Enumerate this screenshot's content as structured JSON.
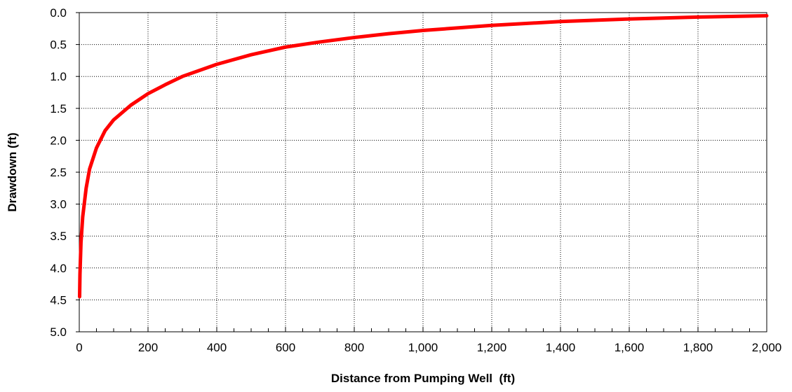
{
  "chart_data": {
    "type": "line",
    "title": "",
    "xlabel": "Distance from Pumping Well  (ft)",
    "ylabel": "Drawdown (ft)",
    "xlim": [
      0,
      2000
    ],
    "ylim": [
      0.0,
      5.0
    ],
    "y_inverted": true,
    "grid": true,
    "legend": "none",
    "x_ticks": [
      0,
      200,
      400,
      600,
      800,
      1000,
      1200,
      1400,
      1600,
      1800,
      2000
    ],
    "x_tick_labels": [
      "0",
      "200",
      "400",
      "600",
      "800",
      "1,000",
      "1,200",
      "1,400",
      "1,600",
      "1,800",
      "2,000"
    ],
    "y_ticks": [
      0.0,
      0.5,
      1.0,
      1.5,
      2.0,
      2.5,
      3.0,
      3.5,
      4.0,
      4.5,
      5.0
    ],
    "y_tick_labels": [
      "0.0",
      "0.5",
      "1.0",
      "1.5",
      "2.0",
      "2.5",
      "3.0",
      "3.5",
      "4.0",
      "4.5",
      "5.0"
    ],
    "series": [
      {
        "color": "#ff0000",
        "x": [
          1,
          2,
          5,
          10,
          20,
          30,
          50,
          75,
          100,
          150,
          200,
          250,
          300,
          400,
          500,
          600,
          700,
          800,
          900,
          1000,
          1200,
          1400,
          1600,
          1800,
          2000
        ],
        "y": [
          4.45,
          4.1,
          3.6,
          3.2,
          2.75,
          2.45,
          2.12,
          1.85,
          1.68,
          1.45,
          1.27,
          1.13,
          1.0,
          0.81,
          0.66,
          0.54,
          0.46,
          0.39,
          0.33,
          0.28,
          0.2,
          0.14,
          0.1,
          0.07,
          0.05
        ]
      }
    ]
  }
}
